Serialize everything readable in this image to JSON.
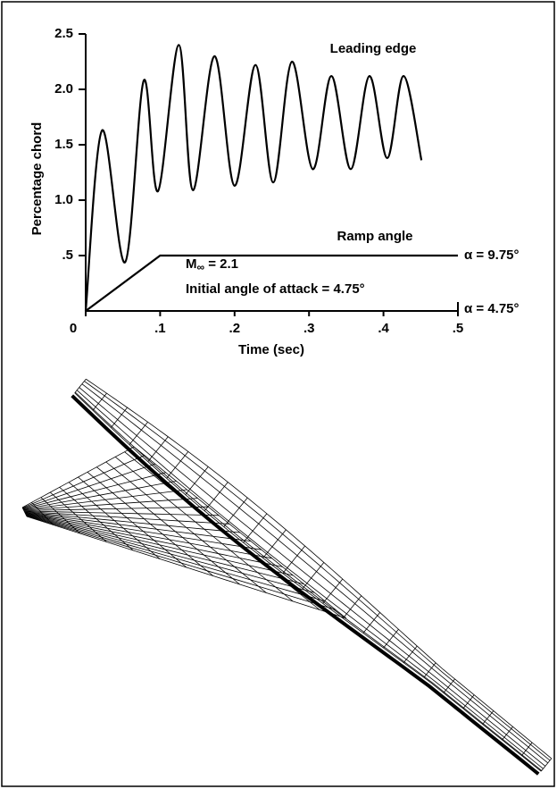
{
  "chart_data": {
    "type": "line",
    "x_label": "Time (sec)",
    "y_label": "Percentage chord",
    "xlim": [
      0,
      0.5
    ],
    "ylim": [
      0,
      2.5
    ],
    "xticks": [
      0,
      {
        "value": 0.1,
        "label": ".1"
      },
      {
        "value": 0.2,
        "label": ".2"
      },
      {
        "value": 0.3,
        "label": ".3"
      },
      {
        "value": 0.4,
        "label": ".4"
      },
      {
        "value": 0.5,
        "label": ".5"
      }
    ],
    "yticks": [
      {
        "value": 0.5,
        "label": ".5"
      },
      {
        "value": 1.0,
        "label": "1.0"
      },
      1.5,
      {
        "value": 2.0,
        "label": "2.0"
      },
      2.5
    ],
    "grid": false,
    "series": [
      {
        "name": "Leading edge",
        "color": "#000000",
        "x": [
          0,
          0.022,
          0.053,
          0.078,
          0.097,
          0.125,
          0.144,
          0.173,
          0.2,
          0.228,
          0.252,
          0.277,
          0.305,
          0.33,
          0.356,
          0.381,
          0.405,
          0.427,
          0.451
        ],
        "values": [
          0,
          1.63,
          0.44,
          2.08,
          1.08,
          2.4,
          1.09,
          2.3,
          1.13,
          2.22,
          1.16,
          2.25,
          1.28,
          2.12,
          1.28,
          2.12,
          1.38,
          2.12,
          1.36
        ]
      },
      {
        "name": "Ramp angle",
        "color": "#000000",
        "x": [
          0,
          0.1,
          0.5
        ],
        "values": [
          0,
          0.5,
          0.5
        ]
      }
    ],
    "annotations": {
      "mach": {
        "base": "M",
        "subscript": "∞",
        "text": " = 2.1"
      },
      "initial": "Initial angle of attack = 4.75°",
      "alpha_high": "α = 9.75°",
      "alpha_low": "α = 4.75°"
    }
  }
}
